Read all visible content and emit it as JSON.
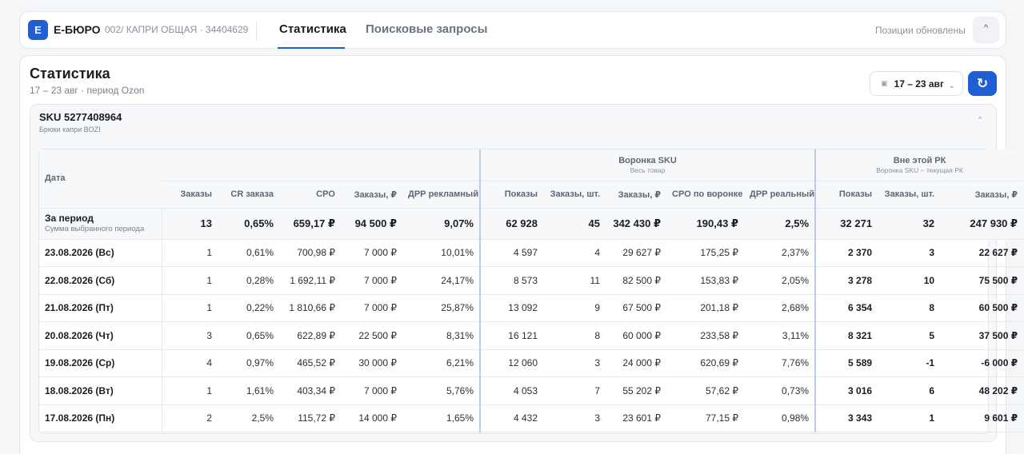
{
  "header": {
    "logo_letter": "E",
    "brand": "Е-БЮРО",
    "subinfo": "002/ КАПРИ ОБЩАЯ · 34404629",
    "tabs": [
      {
        "label": "Статистика",
        "active": true
      },
      {
        "label": "Поисковые запросы",
        "active": false
      }
    ],
    "status_text": "Позиции обновлены",
    "collapse_icon": "chevron-up-icon"
  },
  "panel": {
    "title": "Статистика",
    "subtitle": "17 – 23 авг · период Ozon",
    "date_range": "17 – 23 авг",
    "refresh_icon": "refresh-icon"
  },
  "sku": {
    "title": "SKU 5277408964",
    "subtitle": "Брюки капри BOZI"
  },
  "table": {
    "date_header": "Дата",
    "groups": {
      "funnel": {
        "title": "Воронка SKU",
        "subtitle": "Весь товар"
      },
      "outside": {
        "title": "Вне этой РК",
        "subtitle": "Воронка SKU − текущая РК"
      }
    },
    "columns": [
      "Заказы",
      "CR заказа",
      "CPO",
      "Заказы, ₽",
      "ДРР рекламный",
      "Показы",
      "Заказы, шт.",
      "Заказы, ₽",
      "CPO по воронке",
      "ДРР реальный",
      "Показы",
      "Заказы, шт.",
      "Заказы, ₽"
    ],
    "total": {
      "label": "За период",
      "sublabel": "Сумма выбранного периода",
      "values": [
        "13",
        "0,65%",
        "659,17 ₽",
        "94 500 ₽",
        "9,07%",
        "62 928",
        "45",
        "342 430 ₽",
        "190,43 ₽",
        "2,5%",
        "32 271",
        "32",
        "247 930 ₽"
      ]
    },
    "rows": [
      {
        "date": "23.08.2026 (Вс)",
        "values": [
          "1",
          "0,61%",
          "700,98 ₽",
          "7 000 ₽",
          "10,01%",
          "4 597",
          "4",
          "29 627 ₽",
          "175,25 ₽",
          "2,37%",
          "2 370",
          "3",
          "22 627 ₽"
        ]
      },
      {
        "date": "22.08.2026 (Сб)",
        "values": [
          "1",
          "0,28%",
          "1 692,11 ₽",
          "7 000 ₽",
          "24,17%",
          "8 573",
          "11",
          "82 500 ₽",
          "153,83 ₽",
          "2,05%",
          "3 278",
          "10",
          "75 500 ₽"
        ]
      },
      {
        "date": "21.08.2026 (Пт)",
        "values": [
          "1",
          "0,22%",
          "1 810,66 ₽",
          "7 000 ₽",
          "25,87%",
          "13 092",
          "9",
          "67 500 ₽",
          "201,18 ₽",
          "2,68%",
          "6 354",
          "8",
          "60 500 ₽"
        ]
      },
      {
        "date": "20.08.2026 (Чт)",
        "values": [
          "3",
          "0,65%",
          "622,89 ₽",
          "22 500 ₽",
          "8,31%",
          "16 121",
          "8",
          "60 000 ₽",
          "233,58 ₽",
          "3,11%",
          "8 321",
          "5",
          "37 500 ₽"
        ]
      },
      {
        "date": "19.08.2026 (Ср)",
        "values": [
          "4",
          "0,97%",
          "465,52 ₽",
          "30 000 ₽",
          "6,21%",
          "12 060",
          "3",
          "24 000 ₽",
          "620,69 ₽",
          "7,76%",
          "5 589",
          "-1",
          "-6 000 ₽"
        ]
      },
      {
        "date": "18.08.2026 (Вт)",
        "values": [
          "1",
          "1,61%",
          "403,34 ₽",
          "7 000 ₽",
          "5,76%",
          "4 053",
          "7",
          "55 202 ₽",
          "57,62 ₽",
          "0,73%",
          "3 016",
          "6",
          "48 202 ₽"
        ]
      },
      {
        "date": "17.08.2026 (Пн)",
        "values": [
          "2",
          "2,5%",
          "115,72 ₽",
          "14 000 ₽",
          "1,65%",
          "4 432",
          "3",
          "23 601 ₽",
          "77,15 ₽",
          "0,98%",
          "3 343",
          "1",
          "9 601 ₽"
        ]
      }
    ]
  }
}
